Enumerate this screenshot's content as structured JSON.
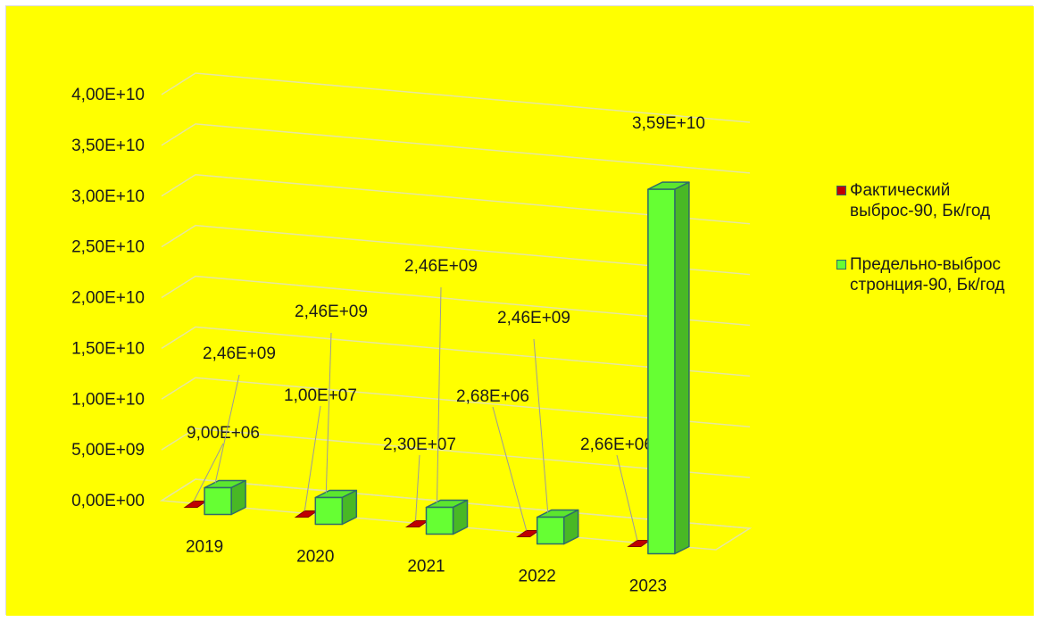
{
  "colors": {
    "background": "#ffff00",
    "series_fact": "#c00000",
    "series_limit": "#66ff33",
    "edge": "#2e6b6b"
  },
  "chart_data": {
    "type": "bar",
    "title": "",
    "xlabel": "",
    "ylabel": "",
    "categories": [
      "2019",
      "2020",
      "2021",
      "2022",
      "2023"
    ],
    "ylim": [
      0,
      40000000000
    ],
    "yticks": [
      0,
      5000000000,
      10000000000,
      15000000000,
      20000000000,
      25000000000,
      30000000000,
      35000000000,
      40000000000
    ],
    "ytick_labels": [
      "0,00E+00",
      "5,00E+09",
      "1,00E+10",
      "1,50E+10",
      "2,00E+10",
      "2,50E+10",
      "3,00E+10",
      "3,50E+10",
      "4,00E+10"
    ],
    "grid": true,
    "legend_position": "right",
    "series": [
      {
        "name": "Фактический выброс-90, Бк/год",
        "color": "#c00000",
        "values": [
          9000000,
          10000000,
          23000000,
          2680000,
          2660000
        ],
        "labels": [
          "9,00E+06",
          "1,00E+07",
          "2,30E+07",
          "2,68E+06",
          "2,66E+06"
        ]
      },
      {
        "name": "Предельно-выброс стронция-90, Бк/год",
        "color": "#66ff33",
        "values": [
          2460000000,
          2460000000,
          2460000000,
          2460000000,
          35900000000
        ],
        "labels": [
          "2,46E+09",
          "2,46E+09",
          "2,46E+09",
          "2,46E+09",
          "3,59E+10"
        ]
      }
    ]
  }
}
